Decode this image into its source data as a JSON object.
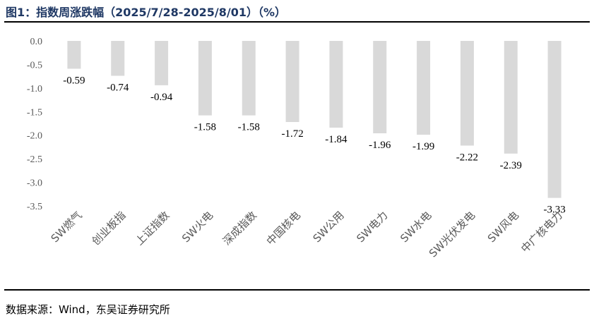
{
  "figure": {
    "title": "图1：指数周涨跌幅（2025/7/28-2025/8/01）（%）",
    "source": "数据来源：Wind，东吴证券研究所"
  },
  "chart_data": {
    "type": "bar",
    "categories": [
      "SW燃气",
      "创业板指",
      "上证指数",
      "SW火电",
      "深成指数",
      "中国核电",
      "SW公用",
      "SW电力",
      "SW水电",
      "SW光伏发电",
      "SW风电",
      "中广核电力"
    ],
    "values": [
      -0.59,
      -0.74,
      -0.94,
      -1.58,
      -1.58,
      -1.72,
      -1.84,
      -1.96,
      -1.99,
      -2.22,
      -2.39,
      -3.33
    ],
    "data_labels": [
      "-0.59",
      "-0.74",
      "-0.94",
      "-1.58",
      "-1.58",
      "-1.72",
      "-1.84",
      "-1.96",
      "-1.99",
      "-2.22",
      "-2.39",
      "-3.33"
    ],
    "yticks": [
      "0.0",
      "-0.5",
      "-1.0",
      "-1.5",
      "-2.0",
      "-2.5",
      "-3.0",
      "-3.5"
    ],
    "ylim": [
      -3.5,
      0
    ],
    "xlabel": "",
    "ylabel": "",
    "bar_color": "#d9d9d9",
    "grid": false,
    "legend": "none"
  }
}
